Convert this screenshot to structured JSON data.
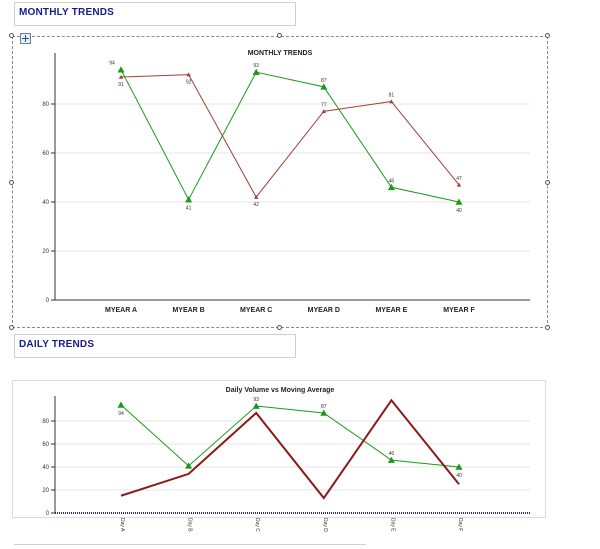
{
  "sections": {
    "monthly_title": "MONTHLY TRENDS",
    "daily_title": "DAILY TRENDS"
  },
  "colors": {
    "green": "#1a9a1a",
    "darkred": "#8b1a1a",
    "brown": "#a0403a",
    "axis": "#333333",
    "grid": "#e6e6e6",
    "title_blue": "#1a1a8c"
  },
  "chart_data": [
    {
      "type": "line",
      "title": "MONTHLY TRENDS",
      "categories": [
        "MYEAR A",
        "MYEAR B",
        "MYEAR C",
        "MYEAR D",
        "MYEAR E",
        "MYEAR F"
      ],
      "ylim": [
        0,
        100
      ],
      "yticks": [
        "0",
        "20",
        "40",
        "60",
        "80"
      ],
      "ytick_values": [
        0,
        20,
        40,
        60,
        80
      ],
      "grid": true,
      "series": [
        {
          "values": [
            94,
            41,
            93,
            87,
            46,
            40
          ],
          "labels": [
            "94",
            "41",
            "93",
            "87",
            "46",
            "40"
          ],
          "color": "#1a9a1a",
          "marker": "triangle"
        },
        {
          "values": [
            91,
            92,
            42,
            77,
            81,
            47
          ],
          "labels": [
            "91",
            "92",
            "42",
            "77",
            "81",
            "47"
          ],
          "color": "#a0403a",
          "marker": "triangle-small"
        }
      ]
    },
    {
      "type": "line",
      "title": "Daily Volume vs Moving Average",
      "categories": [
        "Day A",
        "Day B",
        "Day C",
        "Day D",
        "Day E",
        "Day F"
      ],
      "ylim": [
        0,
        100
      ],
      "yticks": [
        "0",
        "20",
        "40",
        "60",
        "80"
      ],
      "ytick_values": [
        0,
        20,
        40,
        60,
        80
      ],
      "grid": true,
      "series": [
        {
          "values": [
            94,
            41,
            93,
            87,
            46,
            40
          ],
          "labels": [
            "94",
            "",
            "93",
            "87",
            "46",
            "40"
          ],
          "color": "#1a9a1a",
          "marker": "triangle"
        },
        {
          "values": [
            15,
            34,
            87,
            13,
            98,
            25
          ],
          "labels": [
            "",
            "",
            "",
            "",
            "",
            ""
          ],
          "color": "#8b1a1a",
          "marker": "none"
        }
      ]
    }
  ]
}
